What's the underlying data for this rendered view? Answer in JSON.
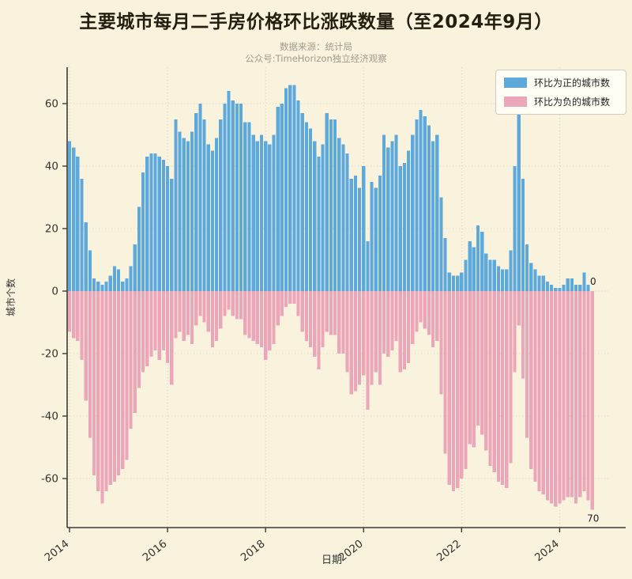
{
  "title": "主要城市每月二手房价格环比涨跌数量（至2024年9月）",
  "subtitle_line1": "数据来源：统计局",
  "subtitle_line2": "公众号:TimeHorizon独立经济观察",
  "legend": {
    "positive_label": "环比为正的城市数",
    "negative_label": "环比为负的城市数"
  },
  "colors": {
    "positive": "#5ea9db",
    "negative": "#ecA6ba",
    "background": "#f9f2dc",
    "legend_bg": "#fffdf4",
    "grid": "#bdbdb0",
    "axis": "#3a3a3a",
    "tick_text": "#333333",
    "title_text": "#241d12",
    "subtitle_text": "#a09a8e"
  },
  "annotations": [
    {
      "text": "0",
      "series": "positive"
    },
    {
      "text": "70",
      "series": "negative"
    }
  ],
  "chart_data": {
    "type": "bar",
    "title": "主要城市每月二手房价格环比涨跌数量（至2024年9月）",
    "xlabel": "日期",
    "ylabel": "城市个数",
    "yticks": [
      60,
      40,
      20,
      0,
      -20,
      -40,
      -60
    ],
    "xtick_labels": [
      "2014",
      "2016",
      "2018",
      "2020",
      "2022",
      "2024"
    ],
    "xtick_month_index": [
      0,
      24,
      48,
      72,
      96,
      120
    ],
    "ylim": [
      -75.5,
      71.5
    ],
    "grid": true,
    "legend_position": "upper right",
    "x_start": "2014-01",
    "x_end": "2024-09",
    "x": [
      "2014-01",
      "2014-02",
      "2014-03",
      "2014-04",
      "2014-05",
      "2014-06",
      "2014-07",
      "2014-08",
      "2014-09",
      "2014-10",
      "2014-11",
      "2014-12",
      "2015-01",
      "2015-02",
      "2015-03",
      "2015-04",
      "2015-05",
      "2015-06",
      "2015-07",
      "2015-08",
      "2015-09",
      "2015-10",
      "2015-11",
      "2015-12",
      "2016-01",
      "2016-02",
      "2016-03",
      "2016-04",
      "2016-05",
      "2016-06",
      "2016-07",
      "2016-08",
      "2016-09",
      "2016-10",
      "2016-11",
      "2016-12",
      "2017-01",
      "2017-02",
      "2017-03",
      "2017-04",
      "2017-05",
      "2017-06",
      "2017-07",
      "2017-08",
      "2017-09",
      "2017-10",
      "2017-11",
      "2017-12",
      "2018-01",
      "2018-02",
      "2018-03",
      "2018-04",
      "2018-05",
      "2018-06",
      "2018-07",
      "2018-08",
      "2018-09",
      "2018-10",
      "2018-11",
      "2018-12",
      "2019-01",
      "2019-02",
      "2019-03",
      "2019-04",
      "2019-05",
      "2019-06",
      "2019-07",
      "2019-08",
      "2019-09",
      "2019-10",
      "2019-11",
      "2019-12",
      "2020-01",
      "2020-02",
      "2020-03",
      "2020-04",
      "2020-05",
      "2020-06",
      "2020-07",
      "2020-08",
      "2020-09",
      "2020-10",
      "2020-11",
      "2020-12",
      "2021-01",
      "2021-02",
      "2021-03",
      "2021-04",
      "2021-05",
      "2021-06",
      "2021-07",
      "2021-08",
      "2021-09",
      "2021-10",
      "2021-11",
      "2021-12",
      "2022-01",
      "2022-02",
      "2022-03",
      "2022-04",
      "2022-05",
      "2022-06",
      "2022-07",
      "2022-08",
      "2022-09",
      "2022-10",
      "2022-11",
      "2022-12",
      "2023-01",
      "2023-02",
      "2023-03",
      "2023-04",
      "2023-05",
      "2023-06",
      "2023-07",
      "2023-08",
      "2023-09",
      "2023-10",
      "2023-11",
      "2023-12",
      "2024-01",
      "2024-02",
      "2024-03",
      "2024-04",
      "2024-05",
      "2024-06",
      "2024-07",
      "2024-08",
      "2024-09"
    ],
    "series": [
      {
        "name": "环比为正的城市数",
        "color": "#5ea9db",
        "values": [
          48,
          46,
          43,
          36,
          22,
          13,
          4,
          3,
          2,
          3,
          5,
          8,
          7,
          3,
          4,
          8,
          15,
          27,
          38,
          43,
          44,
          44,
          43,
          42,
          40,
          36,
          55,
          51,
          49,
          48,
          51,
          57,
          60,
          55,
          47,
          45,
          49,
          55,
          60,
          64,
          61,
          60,
          60,
          54,
          54,
          50,
          48,
          50,
          48,
          47,
          50,
          59,
          60,
          65,
          66,
          66,
          61,
          57,
          54,
          52,
          48,
          43,
          47,
          57,
          55,
          55,
          49,
          47,
          44,
          36,
          37,
          33,
          40,
          16,
          35,
          33,
          37,
          50,
          46,
          48,
          50,
          40,
          41,
          45,
          50,
          55,
          58,
          56,
          53,
          48,
          50,
          30,
          17,
          6,
          5,
          5,
          6,
          10,
          16,
          14,
          21,
          19,
          12,
          10,
          10,
          8,
          7,
          7,
          13,
          40,
          57,
          36,
          15,
          9,
          7,
          5,
          5,
          3,
          2,
          1,
          1,
          2,
          4,
          4,
          2,
          2,
          6,
          2,
          0
        ]
      },
      {
        "name": "环比为负的城市数",
        "color": "#ecA6ba",
        "values": [
          -13,
          -15,
          -16,
          -22,
          -35,
          -47,
          -59,
          -64,
          -68,
          -64,
          -62,
          -61,
          -59,
          -57,
          -54,
          -44,
          -39,
          -31,
          -26,
          -24,
          -21,
          -19,
          -22,
          -19,
          -23,
          -30,
          -15,
          -13,
          -16,
          -14,
          -17,
          -11,
          -8,
          -10,
          -13,
          -18,
          -16,
          -12,
          -8,
          -6,
          -8,
          -9,
          -9,
          -14,
          -15,
          -16,
          -17,
          -18,
          -22,
          -19,
          -17,
          -11,
          -8,
          -5,
          -4,
          -4,
          -8,
          -13,
          -16,
          -18,
          -21,
          -25,
          -18,
          -13,
          -14,
          -14,
          -20,
          -20,
          -26,
          -33,
          -32,
          -30,
          -27,
          -38,
          -30,
          -26,
          -30,
          -20,
          -21,
          -19,
          -16,
          -26,
          -25,
          -23,
          -17,
          -13,
          -10,
          -12,
          -14,
          -18,
          -16,
          -33,
          -52,
          -62,
          -64,
          -63,
          -60,
          -57,
          -49,
          -50,
          -43,
          -46,
          -51,
          -56,
          -58,
          -61,
          -62,
          -63,
          -55,
          -26,
          -11,
          -28,
          -47,
          -57,
          -61,
          -64,
          -65,
          -67,
          -68,
          -69,
          -68,
          -67,
          -66,
          -66,
          -68,
          -66,
          -64,
          -67,
          -70
        ]
      }
    ]
  }
}
